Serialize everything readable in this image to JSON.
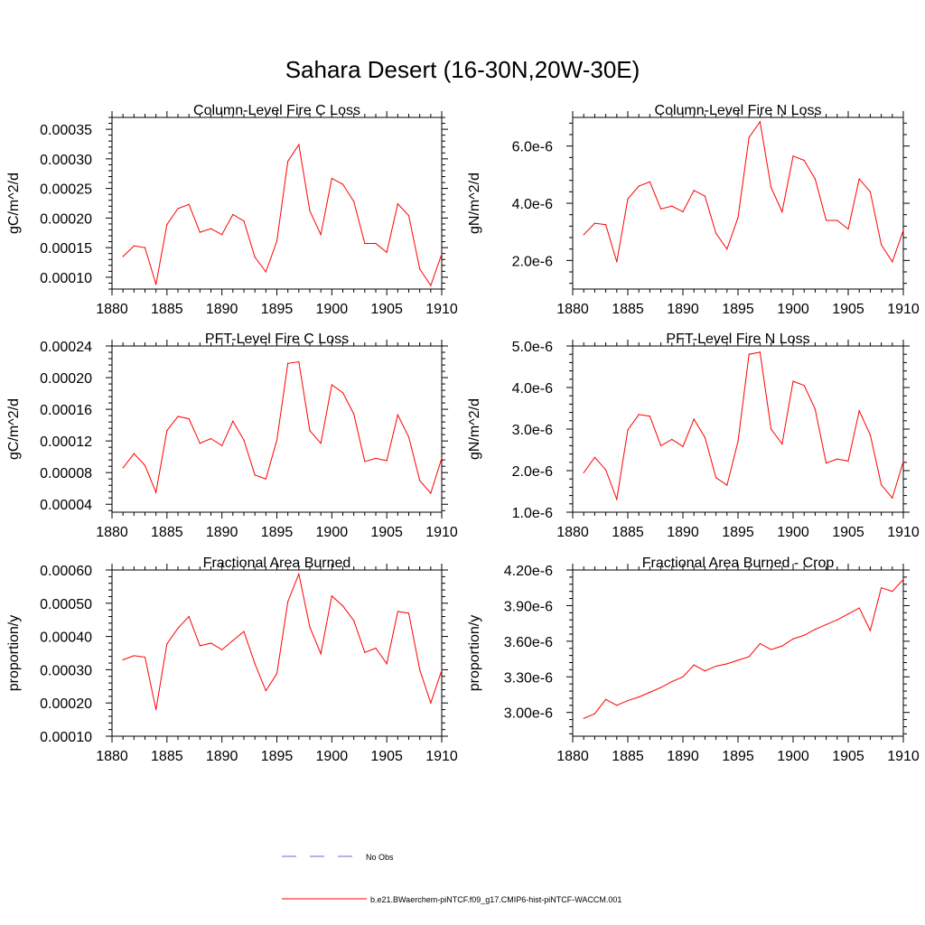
{
  "title": "Sahara Desert (16-30N,20W-30E)",
  "colors": {
    "model_line": "#ff0000",
    "obs_line": "#6b6bc9",
    "axis": "#000000"
  },
  "legend": {
    "obs_label": "No Obs",
    "model_label": "b.e21.BWaerchem-piNTCF.f09_g17.CMIP6-hist-piNTCF-WACCM.001"
  },
  "chart_data": [
    {
      "type": "line",
      "title": "Column-Level Fire C Loss",
      "xlabel": "",
      "ylabel": "gC/m^2/d",
      "xlim": [
        1880,
        1910
      ],
      "ylim": [
        8e-05,
        0.00037
      ],
      "xticks": [
        1880,
        1885,
        1890,
        1895,
        1900,
        1905,
        1910
      ],
      "xtick_labels": [
        "1880",
        "1885",
        "1890",
        "1895",
        "1900",
        "1905",
        "1910"
      ],
      "yticks": [
        0.0001,
        0.00015,
        0.0002,
        0.00025,
        0.0003,
        0.00035
      ],
      "ytick_labels": [
        "0.00010",
        "0.00015",
        "0.00020",
        "0.00025",
        "0.00030",
        "0.00035"
      ],
      "grid": false,
      "x": [
        1881,
        1882,
        1883,
        1884,
        1885,
        1886,
        1887,
        1888,
        1889,
        1890,
        1891,
        1892,
        1893,
        1894,
        1895,
        1896,
        1897,
        1898,
        1899,
        1900,
        1901,
        1902,
        1903,
        1904,
        1905,
        1906,
        1907,
        1908,
        1909,
        1910
      ],
      "y": [
        0.000135,
        0.000153,
        0.00015,
        8.8e-05,
        0.000189,
        0.000216,
        0.000223,
        0.000176,
        0.000182,
        0.000172,
        0.000206,
        0.000195,
        0.000134,
        0.000109,
        0.000161,
        0.000296,
        0.000324,
        0.000212,
        0.000172,
        0.000267,
        0.000257,
        0.000228,
        0.000157,
        0.000157,
        0.000142,
        0.000224,
        0.000204,
        0.000114,
        8.6e-05,
        0.000139
      ]
    },
    {
      "type": "line",
      "title": "Column-Level Fire N Loss",
      "xlabel": "",
      "ylabel": "gN/m^2/d",
      "xlim": [
        1880,
        1910
      ],
      "ylim": [
        1e-06,
        7e-06
      ],
      "xticks": [
        1880,
        1885,
        1890,
        1895,
        1900,
        1905,
        1910
      ],
      "xtick_labels": [
        "1880",
        "1885",
        "1890",
        "1895",
        "1900",
        "1905",
        "1910"
      ],
      "yticks": [
        2e-06,
        4e-06,
        6e-06
      ],
      "ytick_labels": [
        "2.0e-6",
        "4.0e-6",
        "6.0e-6"
      ],
      "grid": false,
      "x": [
        1881,
        1882,
        1883,
        1884,
        1885,
        1886,
        1887,
        1888,
        1889,
        1890,
        1891,
        1892,
        1893,
        1894,
        1895,
        1896,
        1897,
        1898,
        1899,
        1900,
        1901,
        1902,
        1903,
        1904,
        1905,
        1906,
        1907,
        1908,
        1909,
        1910
      ],
      "y": [
        2.9e-06,
        3.3e-06,
        3.25e-06,
        1.95e-06,
        4.15e-06,
        4.6e-06,
        4.75e-06,
        3.8e-06,
        3.9e-06,
        3.7e-06,
        4.45e-06,
        4.25e-06,
        2.95e-06,
        2.4e-06,
        3.5e-06,
        6.3e-06,
        6.85e-06,
        4.55e-06,
        3.7e-06,
        5.65e-06,
        5.5e-06,
        4.85e-06,
        3.4e-06,
        3.4e-06,
        3.1e-06,
        4.85e-06,
        4.4e-06,
        2.55e-06,
        1.95e-06,
        3.05e-06
      ]
    },
    {
      "type": "line",
      "title": "PFT-Level Fire C Loss",
      "xlabel": "",
      "ylabel": "gC/m^2/d",
      "xlim": [
        1880,
        1910
      ],
      "ylim": [
        3e-05,
        0.00024
      ],
      "xticks": [
        1880,
        1885,
        1890,
        1895,
        1900,
        1905,
        1910
      ],
      "xtick_labels": [
        "1880",
        "1885",
        "1890",
        "1895",
        "1900",
        "1905",
        "1910"
      ],
      "yticks": [
        4e-05,
        8e-05,
        0.00012,
        0.00016,
        0.0002,
        0.00024
      ],
      "ytick_labels": [
        "0.00004",
        "0.00008",
        "0.00012",
        "0.00016",
        "0.00020",
        "0.00024"
      ],
      "grid": false,
      "x": [
        1881,
        1882,
        1883,
        1884,
        1885,
        1886,
        1887,
        1888,
        1889,
        1890,
        1891,
        1892,
        1893,
        1894,
        1895,
        1896,
        1897,
        1898,
        1899,
        1900,
        1901,
        1902,
        1903,
        1904,
        1905,
        1906,
        1907,
        1908,
        1909,
        1910
      ],
      "y": [
        8.6e-05,
        0.000104,
        8.9e-05,
        5.5e-05,
        0.000133,
        0.000151,
        0.000148,
        0.000117,
        0.000123,
        0.000114,
        0.000145,
        0.000121,
        7.7e-05,
        7.2e-05,
        0.000121,
        0.000218,
        0.00022,
        0.000133,
        0.000117,
        0.000191,
        0.000181,
        0.000154,
        9.4e-05,
        9.8e-05,
        9.5e-05,
        0.000153,
        0.000125,
        7e-05,
        5.4e-05,
        9.8e-05
      ]
    },
    {
      "type": "line",
      "title": "PFT-Level Fire N Loss",
      "xlabel": "",
      "ylabel": "gN/m^2/d",
      "xlim": [
        1880,
        1910
      ],
      "ylim": [
        1e-06,
        5e-06
      ],
      "xticks": [
        1880,
        1885,
        1890,
        1895,
        1900,
        1905,
        1910
      ],
      "xtick_labels": [
        "1880",
        "1885",
        "1890",
        "1895",
        "1900",
        "1905",
        "1910"
      ],
      "yticks": [
        1e-06,
        2e-06,
        3e-06,
        4e-06,
        5e-06
      ],
      "ytick_labels": [
        "1.0e-6",
        "2.0e-6",
        "3.0e-6",
        "4.0e-6",
        "5.0e-6"
      ],
      "grid": false,
      "x": [
        1881,
        1882,
        1883,
        1884,
        1885,
        1886,
        1887,
        1888,
        1889,
        1890,
        1891,
        1892,
        1893,
        1894,
        1895,
        1896,
        1897,
        1898,
        1899,
        1900,
        1901,
        1902,
        1903,
        1904,
        1905,
        1906,
        1907,
        1908,
        1909,
        1910
      ],
      "y": [
        1.95e-06,
        2.32e-06,
        2.02e-06,
        1.31e-06,
        2.98e-06,
        3.35e-06,
        3.31e-06,
        2.6e-06,
        2.75e-06,
        2.58e-06,
        3.24e-06,
        2.8e-06,
        1.83e-06,
        1.65e-06,
        2.7e-06,
        4.8e-06,
        4.85e-06,
        3e-06,
        2.64e-06,
        4.15e-06,
        4.05e-06,
        3.48e-06,
        2.18e-06,
        2.28e-06,
        2.23e-06,
        3.44e-06,
        2.86e-06,
        1.66e-06,
        1.34e-06,
        2.22e-06
      ]
    },
    {
      "type": "line",
      "title": "Fractional Area Burned",
      "xlabel": "",
      "ylabel": "proportion/y",
      "xlim": [
        1880,
        1910
      ],
      "ylim": [
        0.0001,
        0.0006
      ],
      "xticks": [
        1880,
        1885,
        1890,
        1895,
        1900,
        1905,
        1910
      ],
      "xtick_labels": [
        "1880",
        "1885",
        "1890",
        "1895",
        "1900",
        "1905",
        "1910"
      ],
      "yticks": [
        0.0001,
        0.0002,
        0.0003,
        0.0004,
        0.0005,
        0.0006
      ],
      "ytick_labels": [
        "0.00010",
        "0.00020",
        "0.00030",
        "0.00040",
        "0.00050",
        "0.00060"
      ],
      "grid": false,
      "x": [
        1881,
        1882,
        1883,
        1884,
        1885,
        1886,
        1887,
        1888,
        1889,
        1890,
        1891,
        1892,
        1893,
        1894,
        1895,
        1896,
        1897,
        1898,
        1899,
        1900,
        1901,
        1902,
        1903,
        1904,
        1905,
        1906,
        1907,
        1908,
        1909,
        1910
      ],
      "y": [
        0.00033,
        0.000342,
        0.000338,
        0.00018,
        0.000378,
        0.000425,
        0.00046,
        0.000372,
        0.00038,
        0.00036,
        0.000388,
        0.000415,
        0.000318,
        0.000237,
        0.000288,
        0.000505,
        0.000588,
        0.000428,
        0.000348,
        0.000522,
        0.000492,
        0.000448,
        0.000352,
        0.000365,
        0.000318,
        0.000475,
        0.00047,
        0.0003,
        0.0002,
        0.000298
      ]
    },
    {
      "type": "line",
      "title": "Fractional Area Burned - Crop",
      "xlabel": "",
      "ylabel": "proportion/y",
      "xlim": [
        1880,
        1910
      ],
      "ylim": [
        2.8e-06,
        4.2e-06
      ],
      "xticks": [
        1880,
        1885,
        1890,
        1895,
        1900,
        1905,
        1910
      ],
      "xtick_labels": [
        "1880",
        "1885",
        "1890",
        "1895",
        "1900",
        "1905",
        "1910"
      ],
      "yticks": [
        3e-06,
        3.3e-06,
        3.6e-06,
        3.9e-06,
        4.2e-06
      ],
      "ytick_labels": [
        "3.00e-6",
        "3.30e-6",
        "3.60e-6",
        "3.90e-6",
        "4.20e-6"
      ],
      "grid": false,
      "x": [
        1881,
        1882,
        1883,
        1884,
        1885,
        1886,
        1887,
        1888,
        1889,
        1890,
        1891,
        1892,
        1893,
        1894,
        1895,
        1896,
        1897,
        1898,
        1899,
        1900,
        1901,
        1902,
        1903,
        1904,
        1905,
        1906,
        1907,
        1908,
        1909,
        1910
      ],
      "y": [
        2.95e-06,
        2.99e-06,
        3.11e-06,
        3.06e-06,
        3.1e-06,
        3.13e-06,
        3.17e-06,
        3.21e-06,
        3.26e-06,
        3.3e-06,
        3.4e-06,
        3.35e-06,
        3.39e-06,
        3.41e-06,
        3.44e-06,
        3.47e-06,
        3.58e-06,
        3.53e-06,
        3.56e-06,
        3.62e-06,
        3.65e-06,
        3.7e-06,
        3.74e-06,
        3.78e-06,
        3.83e-06,
        3.88e-06,
        3.69e-06,
        4.05e-06,
        4.02e-06,
        4.12e-06
      ]
    }
  ]
}
